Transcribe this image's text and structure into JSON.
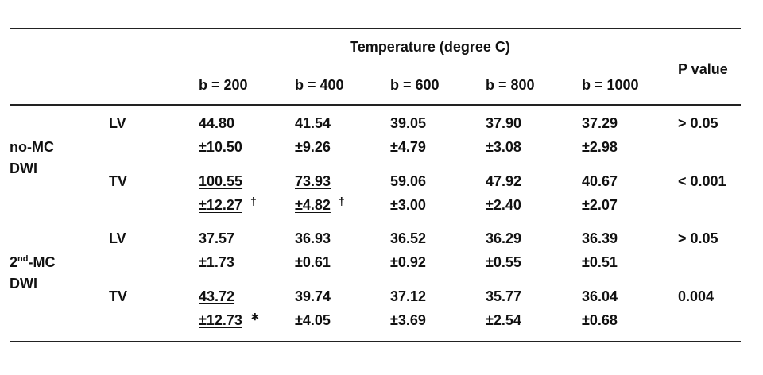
{
  "table": {
    "header": {
      "group_title": "Temperature (degree C)",
      "columns": [
        "b = 200",
        "b = 400",
        "b = 600",
        "b = 800",
        "b = 1000"
      ],
      "p_title": "P value"
    },
    "groups": [
      {
        "label": [
          [
            {
              "text": "no-MC"
            }
          ],
          [
            {
              "text": "DWI"
            }
          ]
        ],
        "rows": [
          {
            "label": "LV",
            "cells": [
              {
                "mean": "44.80",
                "sd": "±10.50"
              },
              {
                "mean": "41.54",
                "sd": "±9.26"
              },
              {
                "mean": "39.05",
                "sd": "±4.79"
              },
              {
                "mean": "37.90",
                "sd": "±3.08"
              },
              {
                "mean": "37.29",
                "sd": "±2.98"
              }
            ],
            "p": "> 0.05"
          },
          {
            "label": "TV",
            "cells": [
              {
                "mean": "100.55",
                "sd": "±12.27",
                "underline": true,
                "mark": "†"
              },
              {
                "mean": "73.93",
                "sd": "±4.82",
                "underline": true,
                "mark": "†"
              },
              {
                "mean": "59.06",
                "sd": "±3.00"
              },
              {
                "mean": "47.92",
                "sd": "±2.40"
              },
              {
                "mean": "40.67",
                "sd": "±2.07"
              }
            ],
            "p": "< 0.001"
          }
        ]
      },
      {
        "label": [
          [
            {
              "text": "2"
            },
            {
              "text": "nd",
              "sup": true
            },
            {
              "text": "-MC"
            }
          ],
          [
            {
              "text": "DWI"
            }
          ]
        ],
        "rows": [
          {
            "label": "LV",
            "cells": [
              {
                "mean": "37.57",
                "sd": "±1.73"
              },
              {
                "mean": "36.93",
                "sd": "±0.61"
              },
              {
                "mean": "36.52",
                "sd": "±0.92"
              },
              {
                "mean": "36.29",
                "sd": "±0.55"
              },
              {
                "mean": "36.39",
                "sd": "±0.51"
              }
            ],
            "p": "> 0.05"
          },
          {
            "label": "TV",
            "cells": [
              {
                "mean": "43.72",
                "sd": "±12.73",
                "underline": true,
                "mark": "∗"
              },
              {
                "mean": "39.74",
                "sd": "±4.05"
              },
              {
                "mean": "37.12",
                "sd": "±3.69"
              },
              {
                "mean": "35.77",
                "sd": "±2.54"
              },
              {
                "mean": "36.04",
                "sd": "±0.68"
              }
            ],
            "p": "0.004"
          }
        ]
      }
    ]
  }
}
